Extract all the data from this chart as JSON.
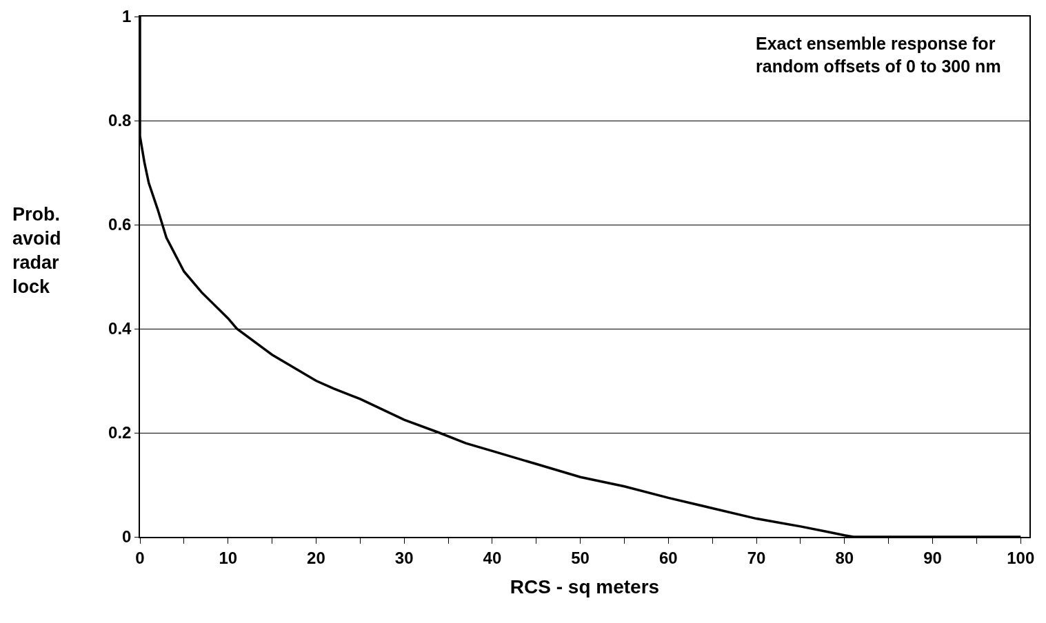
{
  "chart_data": {
    "type": "line",
    "xlabel": "RCS - sq meters",
    "ylabel": "Prob.\navoid\nradar\nlock",
    "annotations": [
      "Exact ensemble response for\nrandom offsets of 0 to 300 nm"
    ],
    "x": [
      0,
      0,
      0.5,
      1,
      2,
      3,
      5,
      7,
      10,
      11,
      15,
      20,
      22,
      25,
      30,
      34,
      37,
      40,
      45,
      50,
      55,
      60,
      65,
      70,
      75,
      78,
      80,
      81,
      90,
      100
    ],
    "series": [
      {
        "color": "#000000",
        "values": [
          1,
          0.77,
          0.72,
          0.68,
          0.63,
          0.575,
          0.51,
          0.47,
          0.42,
          0.4,
          0.35,
          0.3,
          0.285,
          0.265,
          0.225,
          0.2,
          0.18,
          0.165,
          0.14,
          0.115,
          0.097,
          0.075,
          0.055,
          0.035,
          0.02,
          0.01,
          0.003,
          0,
          0,
          0
        ]
      }
    ],
    "xlim": [
      0,
      101
    ],
    "ylim": [
      0,
      1
    ],
    "xticks": [
      0,
      {
        "value": 5,
        "label": null
      },
      10,
      {
        "value": 15,
        "label": null
      },
      20,
      {
        "value": 25,
        "label": null
      },
      30,
      {
        "value": 35,
        "label": null
      },
      40,
      {
        "value": 45,
        "label": null
      },
      50,
      {
        "value": 55,
        "label": null
      },
      60,
      {
        "value": 65,
        "label": null
      },
      70,
      {
        "value": 75,
        "label": null
      },
      80,
      {
        "value": 85,
        "label": null
      },
      90,
      {
        "value": 95,
        "label": null
      },
      100
    ],
    "yticks": [
      0,
      0.2,
      0.4,
      0.6,
      0.8,
      1
    ],
    "grid": "y",
    "marker": "none",
    "line_style": "solid"
  }
}
